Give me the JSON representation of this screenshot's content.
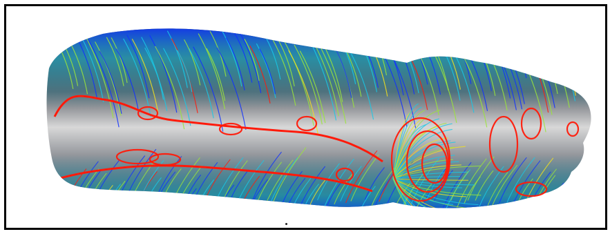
{
  "figure": {
    "subject": "arm-and-hand-streamline-render",
    "colors": {
      "frame": "#000000",
      "background": "#ffffff",
      "surface_light": "#d8d8d8",
      "surface_dark": "#2a2f3a",
      "streamline_low": "#1030ff",
      "streamline_mid_low": "#19c8e6",
      "streamline_mid": "#9be53a",
      "streamline_mid_high": "#f5e21b",
      "streamline_high": "#ff1a0a"
    }
  }
}
